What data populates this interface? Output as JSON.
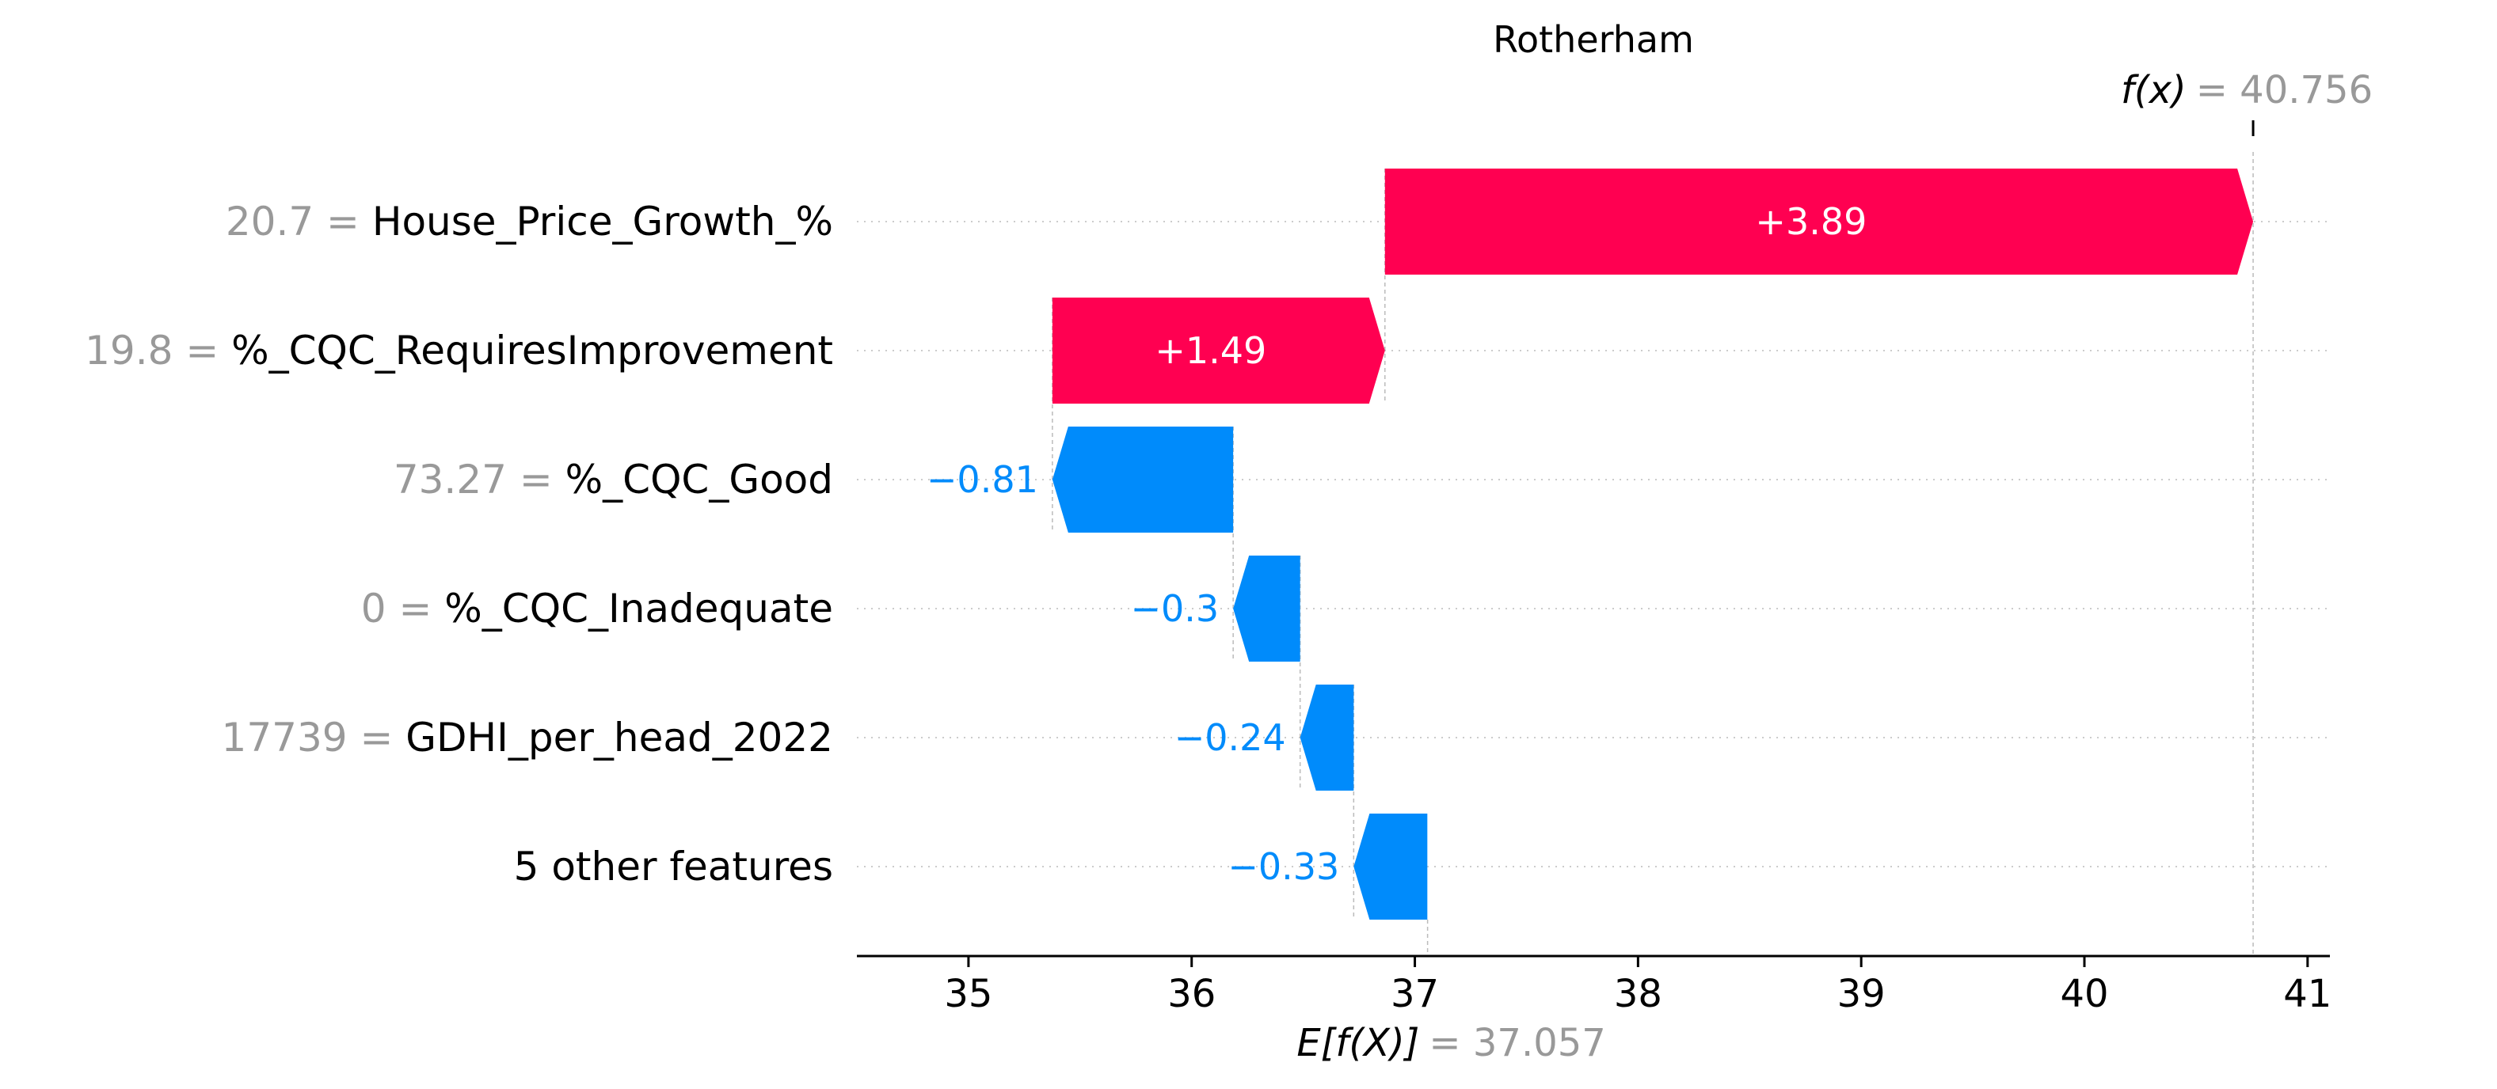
{
  "chart_data": {
    "type": "waterfall",
    "title": "Rotherham",
    "base_value": 37.057,
    "base_label": "E[f(X)]",
    "base_value_text": "= 37.057",
    "output_value": 40.756,
    "output_label": "f(x)",
    "output_value_text": "= 40.756",
    "xlim": [
      34.5,
      41.1
    ],
    "xticks": [
      35,
      36,
      37,
      38,
      39,
      40,
      41
    ],
    "grid": "horizontal dotted per row",
    "colors": {
      "positive": "#ff0051",
      "negative": "#008bfb",
      "muted": "#999999"
    },
    "features": [
      {
        "value": "20.7",
        "name": "House_Price_Growth_%",
        "contribution": 3.89,
        "label": "+3.89"
      },
      {
        "value": "19.8",
        "name": "%_CQC_RequiresImprovement",
        "contribution": 1.49,
        "label": "+1.49"
      },
      {
        "value": "73.27",
        "name": "%_CQC_Good",
        "contribution": -0.81,
        "label": "−0.81"
      },
      {
        "value": "0",
        "name": "%_CQC_Inadequate",
        "contribution": -0.3,
        "label": "−0.3"
      },
      {
        "value": "17739",
        "name": "GDHI_per_head_2022",
        "contribution": -0.24,
        "label": "−0.24"
      },
      {
        "value": "",
        "name": "5 other features",
        "contribution": -0.33,
        "label": "−0.33"
      }
    ]
  }
}
